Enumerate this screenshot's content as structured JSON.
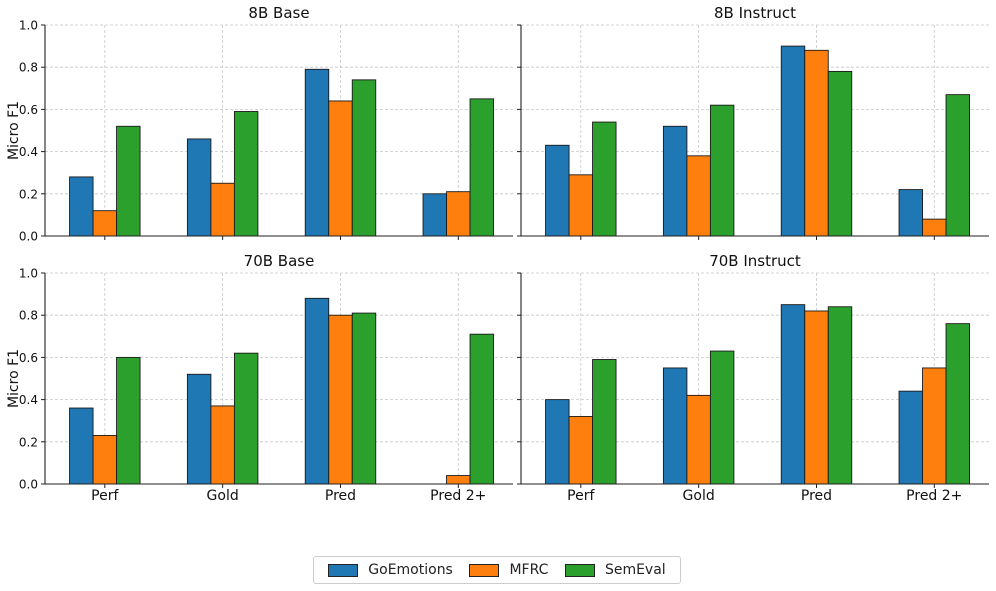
{
  "chart_data": [
    {
      "type": "bar",
      "title": "8B Base",
      "ylabel": "Micro F1",
      "ylim": [
        0,
        1
      ],
      "categories": [
        "Perf",
        "Gold",
        "Pred",
        "Pred 2+"
      ],
      "series": [
        {
          "name": "GoEmotions",
          "values": [
            0.28,
            0.46,
            0.79,
            0.2
          ]
        },
        {
          "name": "MFRC",
          "values": [
            0.12,
            0.25,
            0.64,
            0.21
          ]
        },
        {
          "name": "SemEval",
          "values": [
            0.52,
            0.59,
            0.74,
            0.65
          ]
        }
      ],
      "show_xticklabels": false
    },
    {
      "type": "bar",
      "title": "8B Instruct",
      "ylabel": "",
      "ylim": [
        0,
        1
      ],
      "categories": [
        "Perf",
        "Gold",
        "Pred",
        "Pred 2+"
      ],
      "series": [
        {
          "name": "GoEmotions",
          "values": [
            0.43,
            0.52,
            0.9,
            0.22
          ]
        },
        {
          "name": "MFRC",
          "values": [
            0.29,
            0.38,
            0.88,
            0.08
          ]
        },
        {
          "name": "SemEval",
          "values": [
            0.54,
            0.62,
            0.78,
            0.67
          ]
        }
      ],
      "show_xticklabels": false
    },
    {
      "type": "bar",
      "title": "70B Base",
      "ylabel": "Micro F1",
      "ylim": [
        0,
        1
      ],
      "categories": [
        "Perf",
        "Gold",
        "Pred",
        "Pred 2+"
      ],
      "series": [
        {
          "name": "GoEmotions",
          "values": [
            0.36,
            0.52,
            0.88,
            0.0
          ]
        },
        {
          "name": "MFRC",
          "values": [
            0.23,
            0.37,
            0.8,
            0.04
          ]
        },
        {
          "name": "SemEval",
          "values": [
            0.6,
            0.62,
            0.81,
            0.71
          ]
        }
      ],
      "show_xticklabels": true
    },
    {
      "type": "bar",
      "title": "70B Instruct",
      "ylabel": "",
      "ylim": [
        0,
        1
      ],
      "categories": [
        "Perf",
        "Gold",
        "Pred",
        "Pred 2+"
      ],
      "series": [
        {
          "name": "GoEmotions",
          "values": [
            0.4,
            0.55,
            0.85,
            0.44
          ]
        },
        {
          "name": "MFRC",
          "values": [
            0.32,
            0.42,
            0.82,
            0.55
          ]
        },
        {
          "name": "SemEval",
          "values": [
            0.59,
            0.63,
            0.84,
            0.76
          ]
        }
      ],
      "show_xticklabels": true
    }
  ],
  "y_ticks": [
    "0.0",
    "0.2",
    "0.4",
    "0.6",
    "0.8",
    "1.0"
  ],
  "grid": true,
  "legend": {
    "placement": "bottom-center",
    "items": [
      {
        "label": "GoEmotions",
        "color": "#1f77b4"
      },
      {
        "label": "MFRC",
        "color": "#ff7f0e"
      },
      {
        "label": "SemEval",
        "color": "#2ca02c"
      }
    ]
  }
}
